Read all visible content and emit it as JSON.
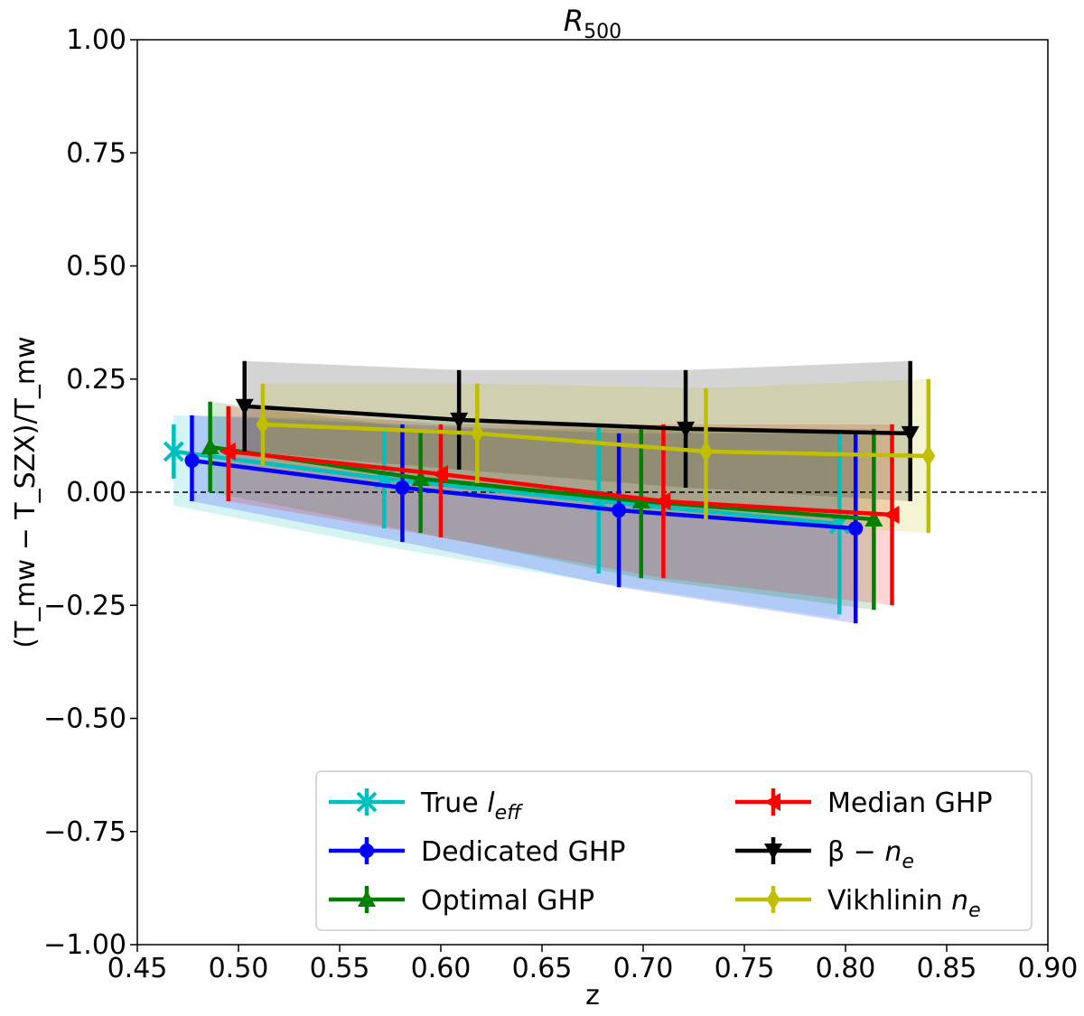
{
  "chart_data": {
    "type": "line",
    "title": "R_500",
    "title_main": "R",
    "title_sub": "500",
    "xlabel": "z",
    "ylabel": "(T_mw − T_SZX)/T_mw",
    "xlim": [
      0.45,
      0.9
    ],
    "ylim": [
      -1.0,
      1.0
    ],
    "x_ticks": [
      "0.45",
      "0.50",
      "0.55",
      "0.60",
      "0.65",
      "0.70",
      "0.75",
      "0.80",
      "0.85",
      "0.90"
    ],
    "y_ticks": [
      "−1.00",
      "−0.75",
      "−0.50",
      "−0.25",
      "0.00",
      "0.25",
      "0.50",
      "0.75",
      "1.00"
    ],
    "grid": false,
    "reference_line_y": 0.0,
    "legend_placement": "lower-right",
    "series": [
      {
        "name": "True l_eff",
        "name_main": "True ",
        "name_italic": "l",
        "name_sub": "eff",
        "color": "#00bfbf",
        "marker": "x",
        "x": [
          0.468,
          0.572,
          0.678,
          0.797
        ],
        "y": [
          0.09,
          0.03,
          -0.02,
          -0.07
        ],
        "err_low": [
          0.03,
          -0.08,
          -0.18,
          -0.27
        ],
        "err_high": [
          0.15,
          0.14,
          0.15,
          0.13
        ],
        "band_low": [
          -0.03,
          -0.12,
          -0.2,
          -0.28
        ],
        "band_high": [
          0.17,
          0.16,
          0.15,
          0.13
        ]
      },
      {
        "name": "Dedicated GHP",
        "color": "#0000ff",
        "marker": "circle",
        "x": [
          0.477,
          0.581,
          0.688,
          0.805
        ],
        "y": [
          0.07,
          0.01,
          -0.04,
          -0.08
        ],
        "err_low": [
          -0.02,
          -0.11,
          -0.21,
          -0.29
        ],
        "err_high": [
          0.17,
          0.15,
          0.13,
          0.13
        ],
        "band_low": [
          -0.02,
          -0.11,
          -0.21,
          -0.29
        ],
        "band_high": [
          0.17,
          0.15,
          0.13,
          0.13
        ]
      },
      {
        "name": "Optimal GHP",
        "color": "#008000",
        "marker": "triangle-up",
        "x": [
          0.486,
          0.59,
          0.699,
          0.814
        ],
        "y": [
          0.1,
          0.03,
          -0.02,
          -0.06
        ],
        "err_low": [
          0.0,
          -0.09,
          -0.19,
          -0.26
        ],
        "err_high": [
          0.2,
          0.14,
          0.14,
          0.14
        ],
        "band_low": [
          0.0,
          -0.09,
          -0.19,
          -0.26
        ],
        "band_high": [
          0.2,
          0.14,
          0.14,
          0.14
        ]
      },
      {
        "name": "Median GHP",
        "color": "#ff0000",
        "marker": "triangle-left",
        "x": [
          0.495,
          0.6,
          0.71,
          0.823
        ],
        "y": [
          0.09,
          0.04,
          -0.02,
          -0.05
        ],
        "err_low": [
          -0.02,
          -0.1,
          -0.19,
          -0.25
        ],
        "err_high": [
          0.19,
          0.15,
          0.15,
          0.15
        ],
        "band_low": [
          -0.02,
          -0.1,
          -0.19,
          -0.25
        ],
        "band_high": [
          0.19,
          0.15,
          0.15,
          0.15
        ]
      },
      {
        "name": "β − n_e",
        "name_main": "β − ",
        "name_italic": "n",
        "name_sub": "e",
        "color": "#000000",
        "marker": "triangle-down",
        "x": [
          0.503,
          0.609,
          0.721,
          0.832
        ],
        "y": [
          0.19,
          0.16,
          0.14,
          0.13
        ],
        "err_low": [
          0.09,
          0.05,
          0.01,
          -0.02
        ],
        "err_high": [
          0.29,
          0.27,
          0.27,
          0.29
        ],
        "band_low": [
          0.09,
          0.05,
          0.01,
          -0.02
        ],
        "band_high": [
          0.29,
          0.27,
          0.27,
          0.29
        ]
      },
      {
        "name": "Vikhlinin n_e",
        "name_main": "Vikhlinin ",
        "name_italic": "n",
        "name_sub": "e",
        "color": "#bfbf00",
        "marker": "diamond",
        "x": [
          0.512,
          0.618,
          0.731,
          0.841
        ],
        "y": [
          0.15,
          0.13,
          0.09,
          0.08
        ],
        "err_low": [
          0.06,
          0.02,
          -0.06,
          -0.09
        ],
        "err_high": [
          0.24,
          0.24,
          0.23,
          0.25
        ],
        "band_low": [
          0.06,
          0.02,
          -0.06,
          -0.09
        ],
        "band_high": [
          0.24,
          0.24,
          0.23,
          0.25
        ]
      }
    ]
  }
}
